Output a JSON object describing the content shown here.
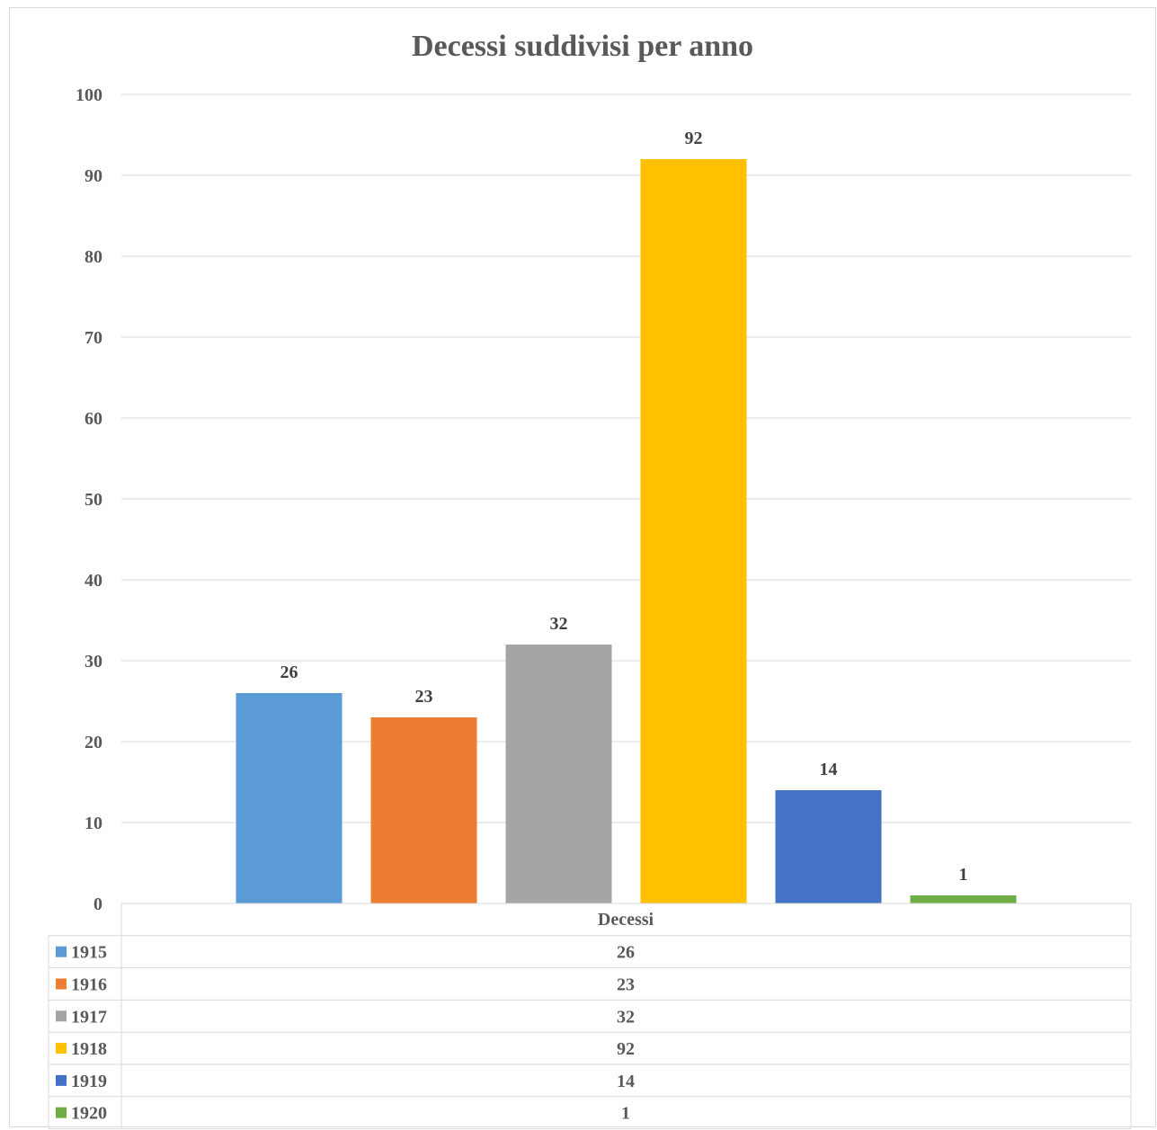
{
  "chart_data": {
    "type": "bar",
    "title": "Decessi suddivisi per anno",
    "category": "Decessi",
    "series": [
      {
        "name": "1915",
        "value": 26,
        "color": "#5B9BD5"
      },
      {
        "name": "1916",
        "value": 23,
        "color": "#ED7D31"
      },
      {
        "name": "1917",
        "value": 32,
        "color": "#A5A5A5"
      },
      {
        "name": "1918",
        "value": 92,
        "color": "#FFC000"
      },
      {
        "name": "1919",
        "value": 14,
        "color": "#4472C4"
      },
      {
        "name": "1920",
        "value": 1,
        "color": "#70AD47"
      }
    ],
    "yticks": [
      0,
      10,
      20,
      30,
      40,
      50,
      60,
      70,
      80,
      90,
      100
    ],
    "ylim": [
      0,
      100
    ],
    "grid": true,
    "legend": "data-table"
  }
}
